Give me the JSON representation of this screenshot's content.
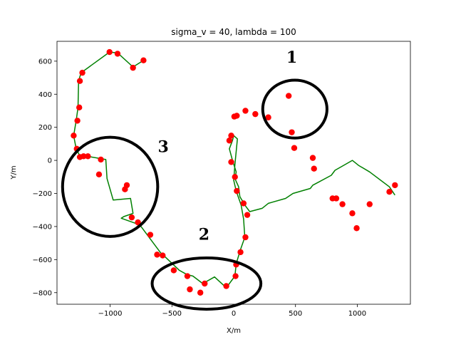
{
  "chart_data": {
    "type": "line",
    "title": "sigma_v = 40, lambda = 100",
    "xlabel": "X/m",
    "ylabel": "Y/m",
    "xlim": [
      -1430,
      1430
    ],
    "ylim": [
      -870,
      720
    ],
    "xticks": [
      -1000,
      -500,
      0,
      500,
      1000
    ],
    "yticks": [
      600,
      400,
      200,
      0,
      -200,
      -400,
      -600,
      -800
    ],
    "xtick_labels": [
      "−1000",
      "−500",
      "0",
      "500",
      "1000"
    ],
    "ytick_labels": [
      "600",
      "400",
      "200",
      "0",
      "−200",
      "−400",
      "−600",
      "−800"
    ],
    "grid": false,
    "series": [
      {
        "role": "filtered track",
        "style": "line",
        "color": "#008000",
        "x": [
          -730,
          -815,
          -940,
          -1005,
          -1235,
          -1255,
          -1260,
          -1275,
          -1295,
          -1275,
          -1240,
          -1215,
          -1185,
          -1035,
          -1025,
          -975,
          -835,
          -815,
          -890,
          -910,
          -760,
          -690,
          -580,
          -560,
          -440,
          -380,
          -330,
          -250,
          -155,
          -60,
          10,
          20,
          55,
          90,
          80,
          60,
          20,
          0,
          10,
          30,
          0,
          -10,
          -35,
          -10,
          20,
          10,
          40,
          50,
          100,
          130,
          230,
          280,
          420,
          480,
          620,
          640,
          690,
          790,
          820,
          890,
          960,
          1010,
          1100,
          1260,
          1305
        ],
        "y": [
          605,
          565,
          650,
          655,
          530,
          480,
          320,
          240,
          150,
          70,
          20,
          25,
          25,
          5,
          -110,
          -240,
          -230,
          -320,
          -340,
          -350,
          -390,
          -460,
          -570,
          -580,
          -665,
          -690,
          -700,
          -745,
          -705,
          -770,
          -700,
          -625,
          -540,
          -465,
          -355,
          -270,
          -185,
          -120,
          -25,
          130,
          150,
          120,
          70,
          0,
          -70,
          -110,
          -160,
          -220,
          -280,
          -310,
          -290,
          -260,
          -230,
          -200,
          -170,
          -150,
          -130,
          -90,
          -60,
          -30,
          0,
          -30,
          -70,
          -160,
          -210
        ],
        "points_note": ""
      },
      {
        "role": "measurements",
        "style": "scatter",
        "color": "#ff0000",
        "x": [
          -730,
          -815,
          -940,
          -1005,
          -1225,
          -1245,
          -1250,
          -1265,
          -1295,
          -1270,
          -1245,
          -1215,
          -1180,
          -1075,
          -1090,
          -865,
          -880,
          -825,
          -775,
          -675,
          -620,
          -575,
          -485,
          -375,
          -355,
          -270,
          -235,
          -60,
          15,
          20,
          55,
          95,
          110,
          80,
          25,
          10,
          -20,
          -35,
          -20,
          5,
          25,
          95,
          175,
          280,
          470,
          490,
          640,
          650,
          800,
          830,
          880,
          960,
          995,
          1100,
          1260,
          1305,
          445
        ],
        "y": [
          605,
          560,
          645,
          655,
          530,
          480,
          320,
          240,
          150,
          70,
          20,
          25,
          25,
          5,
          -85,
          -150,
          -175,
          -345,
          -375,
          -450,
          -570,
          -575,
          -665,
          -700,
          -780,
          -800,
          -745,
          -760,
          -700,
          -630,
          -555,
          -465,
          -330,
          -260,
          -185,
          -100,
          -10,
          120,
          150,
          265,
          270,
          300,
          280,
          260,
          170,
          75,
          15,
          -50,
          -230,
          -230,
          -265,
          -320,
          -410,
          -265,
          -190,
          -150,
          390
        ]
      }
    ],
    "annotations": [
      {
        "label": "1",
        "center": [
          495,
          310
        ],
        "rx": 260,
        "ry": 175
      },
      {
        "label": "2",
        "center": [
          -220,
          -745
        ],
        "rx": 440,
        "ry": 155
      },
      {
        "label": "3",
        "center": [
          -1000,
          -160
        ],
        "rx": 385,
        "ry": 300
      }
    ],
    "annotation_labels": [
      {
        "text": "1",
        "x": 470,
        "y": 590
      },
      {
        "text": "2",
        "x": -240,
        "y": -480
      },
      {
        "text": "3",
        "x": -570,
        "y": 50
      }
    ]
  }
}
